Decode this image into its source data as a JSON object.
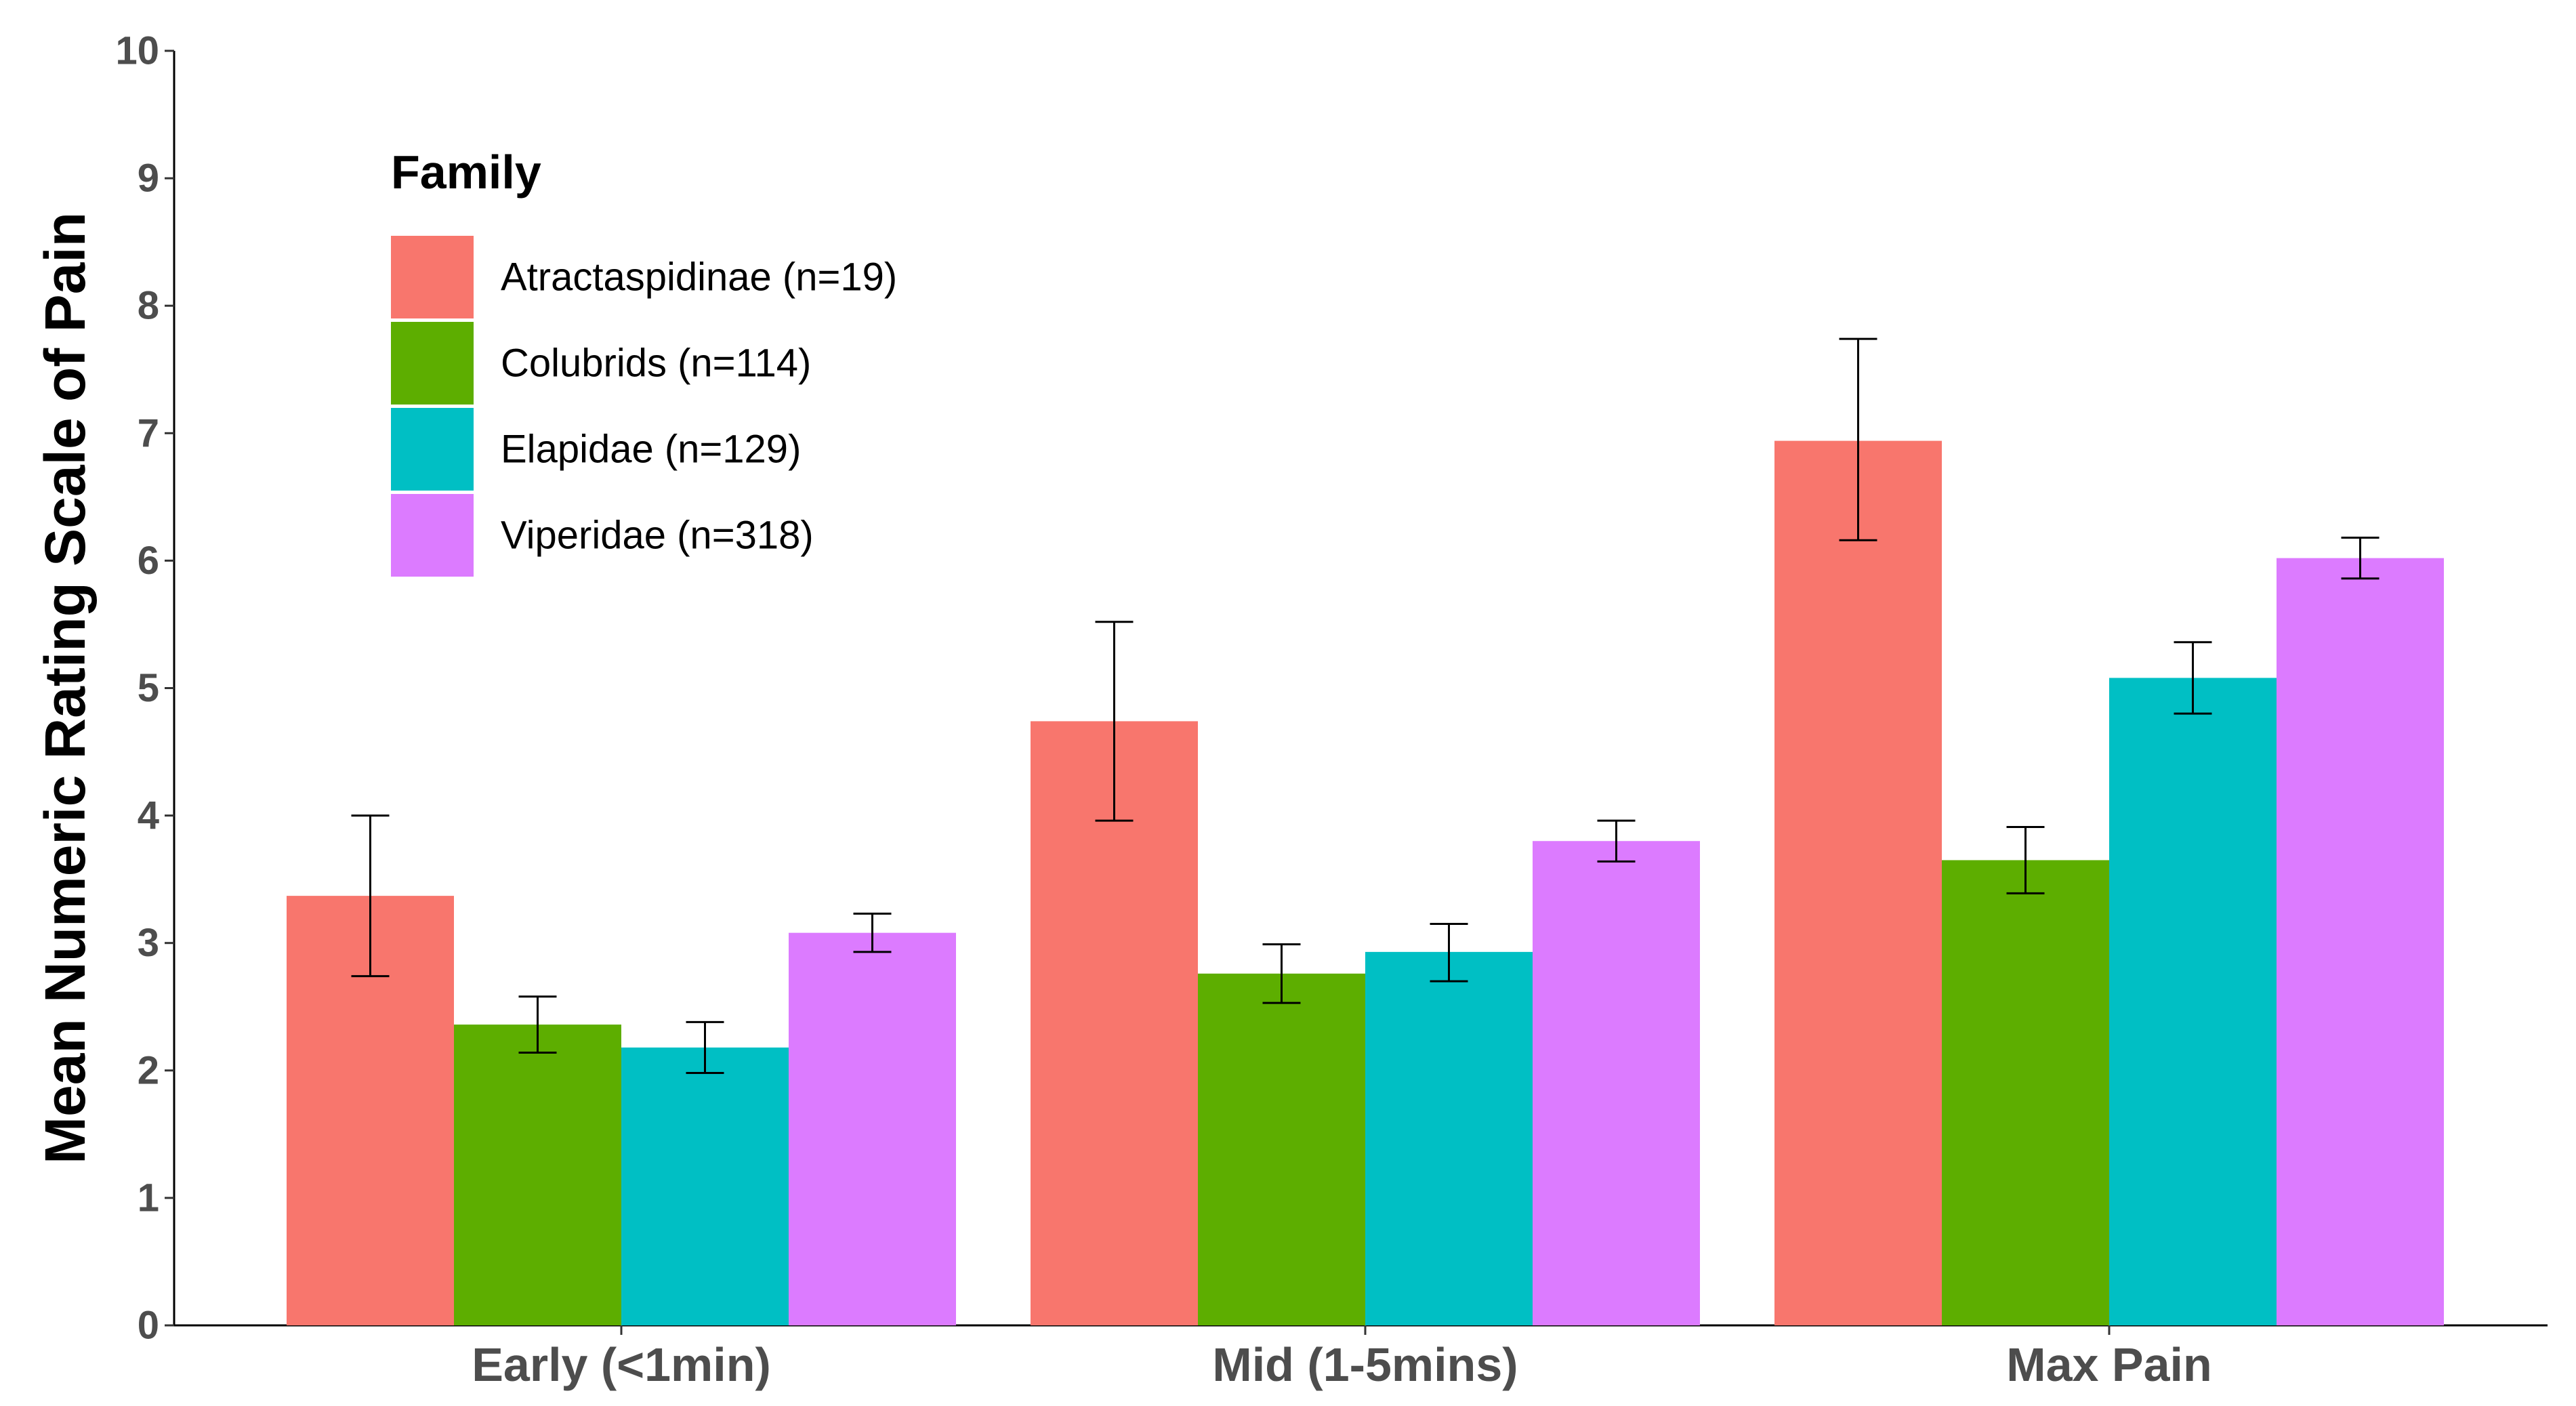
{
  "chart_data": {
    "type": "bar",
    "title": "",
    "xlabel": "",
    "ylabel": "Mean Numeric Rating Scale of Pain",
    "ylim": [
      0,
      10
    ],
    "yticks": [
      "0",
      "1",
      "2",
      "3",
      "4",
      "5",
      "6",
      "7",
      "8",
      "9",
      "10"
    ],
    "categories": [
      "Early (<1min)",
      "Mid (1-5mins)",
      "Max Pain"
    ],
    "legend": {
      "title": "Family",
      "position": "top-left"
    },
    "series": [
      {
        "name": "Atractaspidinae (n=19)",
        "color": "#F8766D",
        "values": [
          3.37,
          4.74,
          6.94
        ],
        "err_low": [
          2.74,
          3.96,
          6.16
        ],
        "err_high": [
          4.0,
          5.52,
          7.74
        ]
      },
      {
        "name": "Colubrids (n=114)",
        "color": "#5DAE00",
        "values": [
          2.36,
          2.76,
          3.65
        ],
        "err_low": [
          2.14,
          2.53,
          3.39
        ],
        "err_high": [
          2.58,
          2.99,
          3.91
        ]
      },
      {
        "name": "Elapidae (n=129)",
        "color": "#00BFC4",
        "values": [
          2.18,
          2.93,
          5.08
        ],
        "err_low": [
          1.98,
          2.7,
          4.8
        ],
        "err_high": [
          2.38,
          3.15,
          5.36
        ]
      },
      {
        "name": "Viperidae (n=318)",
        "color": "#DC7BFF",
        "values": [
          3.08,
          3.8,
          6.02
        ],
        "err_low": [
          2.93,
          3.64,
          5.86
        ],
        "err_high": [
          3.23,
          3.96,
          6.18
        ]
      }
    ]
  }
}
